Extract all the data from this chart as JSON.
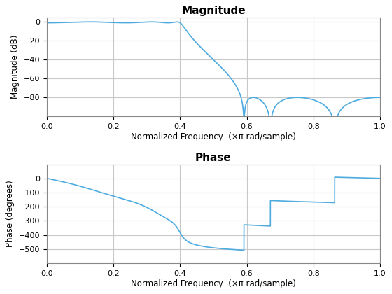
{
  "title_mag": "Magnitude",
  "title_phase": "Phase",
  "xlabel": "Normalized Frequency  (×π rad/sample)",
  "ylabel_mag": "Magnitude (dB)",
  "ylabel_phase": "Phase (degrees)",
  "line_color": "#4dabe0",
  "background_color": "#ffffff",
  "grid_color": "#c8c8c8",
  "xlim": [
    0,
    1
  ],
  "mag_ylim": [
    -100,
    5
  ],
  "phase_ylim": [
    -600,
    100
  ],
  "mag_yticks": [
    0,
    -20,
    -40,
    -60,
    -80
  ],
  "phase_yticks": [
    0,
    -100,
    -200,
    -300,
    -400,
    -500
  ],
  "xticks": [
    0,
    0.2,
    0.4,
    0.6,
    0.8,
    1.0
  ]
}
